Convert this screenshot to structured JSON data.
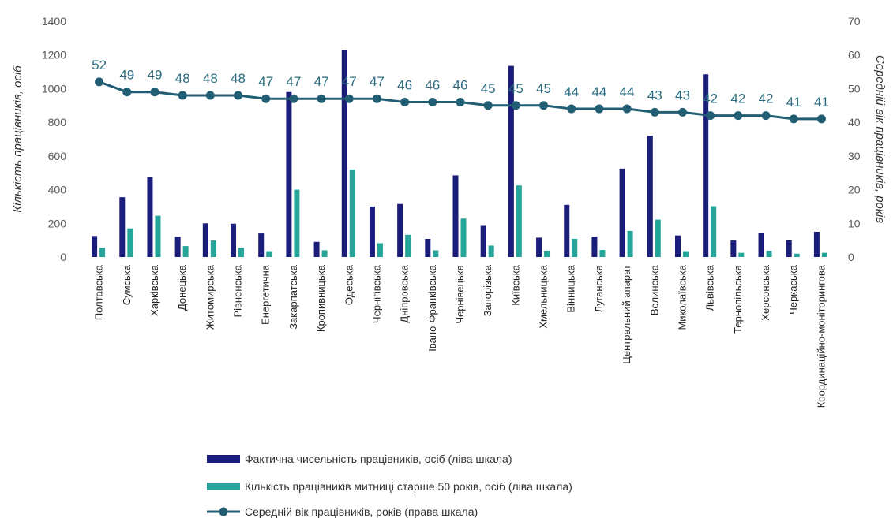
{
  "chart_data": {
    "type": "bar",
    "categories": [
      "Полтавська",
      "Сумська",
      "Харківська",
      "Донецька",
      "Житомирська",
      "Рівненська",
      "Енергетична",
      "Закарпатська",
      "Кропивницька",
      "Одеська",
      "Чернігівська",
      "Дніпровська",
      "Івано-Франківська",
      "Чернівецька",
      "Запорізька",
      "Київська",
      "Хмельницька",
      "Вінницька",
      "Луганська",
      "Центральний апарат",
      "Волинська",
      "Миколаївська",
      "Львівська",
      "Тернопільська",
      "Херсонська",
      "Черкаська",
      "Координаційно-моніторингова"
    ],
    "series": [
      {
        "name": "Фактична чисельність працівників, осіб (ліва шкала)",
        "type": "bar",
        "axis": "left",
        "color": "#1a1d7a",
        "values": [
          125,
          355,
          475,
          120,
          200,
          198,
          140,
          980,
          90,
          1230,
          300,
          315,
          108,
          485,
          185,
          1135,
          115,
          310,
          122,
          525,
          720,
          128,
          1085,
          98,
          142,
          100,
          150
        ]
      },
      {
        "name": "Кількість працівників митниці старше 50 років, осіб (ліва шкала)",
        "type": "bar",
        "axis": "left",
        "color": "#26a69a",
        "values": [
          55,
          170,
          245,
          65,
          98,
          55,
          35,
          400,
          40,
          520,
          82,
          132,
          40,
          228,
          68,
          425,
          38,
          108,
          42,
          155,
          222,
          35,
          302,
          25,
          38,
          20,
          25
        ]
      },
      {
        "name": "Середній вік працівників, років (права шкала)",
        "type": "line",
        "axis": "right",
        "color": "#215e73",
        "values": [
          52,
          49,
          49,
          48,
          48,
          48,
          47,
          47,
          47,
          47,
          47,
          46,
          46,
          46,
          45,
          45,
          45,
          44,
          44,
          44,
          43,
          43,
          42,
          42,
          42,
          41,
          41
        ]
      }
    ],
    "ylabel": "Кількість працівників, осіб",
    "y2label": "Середній вік працівників, років",
    "ylim": [
      0,
      1400
    ],
    "y2lim": [
      0,
      70
    ],
    "yticks": [
      0,
      200,
      400,
      600,
      800,
      1000,
      1200,
      1400
    ],
    "y2ticks": [
      0,
      10,
      20,
      30,
      40,
      50,
      60,
      70
    ],
    "grid": false,
    "legend_position": "bottom"
  }
}
